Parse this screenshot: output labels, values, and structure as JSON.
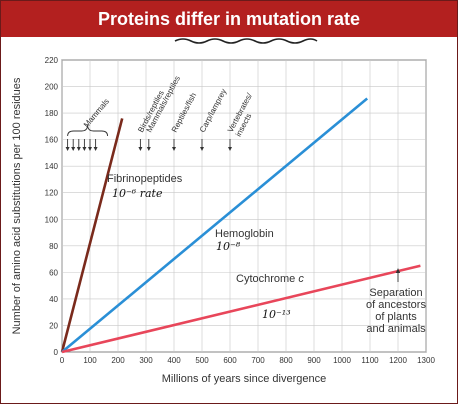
{
  "chart_data": {
    "type": "line",
    "title": "Proteins differ in mutation rate",
    "xlabel": "Millions of years since divergence",
    "ylabel": "Number of amino acid substitutions per 100 residues",
    "xlim": [
      0,
      1300
    ],
    "ylim": [
      0,
      220
    ],
    "xticks": [
      0,
      100,
      200,
      300,
      400,
      500,
      600,
      700,
      800,
      900,
      1000,
      1100,
      1200,
      1300
    ],
    "yticks": [
      0,
      20,
      40,
      60,
      80,
      100,
      120,
      140,
      160,
      180,
      200,
      220
    ],
    "grid": true,
    "series": [
      {
        "name": "Fibrinopeptides",
        "x": [
          0,
          215
        ],
        "y": [
          0,
          176
        ],
        "color": "#7a2a1c"
      },
      {
        "name": "Hemoglobin",
        "x": [
          0,
          1090
        ],
        "y": [
          0,
          191
        ],
        "color": "#2a8fd6"
      },
      {
        "name": "Cytochrome c",
        "x": [
          0,
          1280
        ],
        "y": [
          0,
          65
        ],
        "color": "#e8465a"
      }
    ],
    "divergence_groups": [
      {
        "label": "Mammals",
        "x": 75
      },
      {
        "label": "Birds/reptiles",
        "x": 280
      },
      {
        "label": "Mammals/reptiles",
        "x": 310
      },
      {
        "label": "Reptiles/fish",
        "x": 400
      },
      {
        "label": "Carp/lamprey",
        "x": 500
      },
      {
        "label": "Vertebrates/insects",
        "x": 600
      }
    ],
    "annotations": [
      {
        "text": "Separation of ancestors of plants and animals",
        "x": 1200
      }
    ],
    "handwritten": {
      "fibrinopeptides_rate": "10⁻⁶ rate",
      "hemoglobin_rate": "10⁻⁸",
      "cytochrome_rate": "10⁻¹³"
    }
  }
}
